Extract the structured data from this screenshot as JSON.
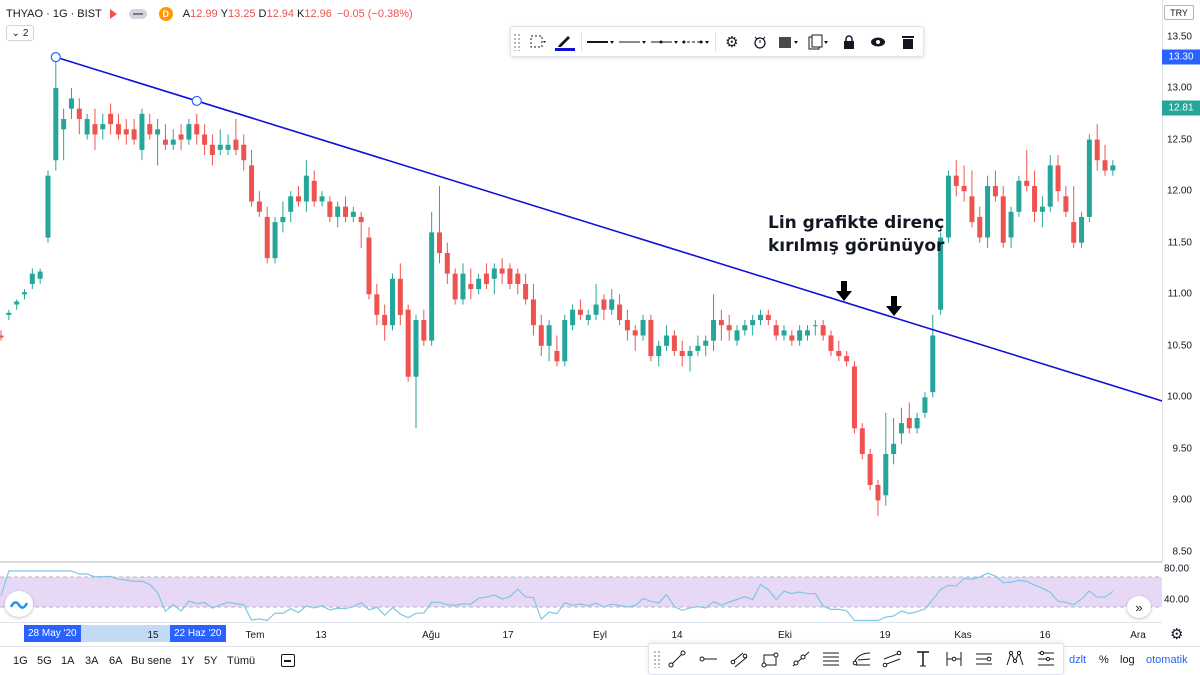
{
  "legend": {
    "symbol": "THYAO · 1G · BIST",
    "ohlc": [
      {
        "k": "A",
        "v": "12.99"
      },
      {
        "k": "Y",
        "v": "13.25"
      },
      {
        "k": "D",
        "v": "12.94"
      },
      {
        "k": "K",
        "v": "12.96"
      }
    ],
    "change": "−0.05 (−0.38%)",
    "d_badge": "D",
    "collapse_count": "2"
  },
  "price_axis": {
    "currency": "TRY",
    "labels": [
      "13.50",
      "13.00",
      "12.50",
      "12.00",
      "11.50",
      "11.00",
      "10.50",
      "10.00",
      "9.50",
      "9.00",
      "8.50"
    ],
    "tag_high": "13.30",
    "tag_last": "12.81",
    "rsi_labels": [
      "80.00",
      "40.00"
    ]
  },
  "annotation": {
    "line1": "Lin grafikte direnç",
    "line2": "kırılmış görünüyor"
  },
  "time_axis": {
    "tag_start": "28 May '20",
    "tag_end": "22 Haz '20",
    "labels": [
      "15",
      "Tem",
      "13",
      "Ağu",
      "17",
      "Eyl",
      "14",
      "Eki",
      "19",
      "Kas",
      "16",
      "Ara"
    ]
  },
  "bottom_bar": {
    "ranges": [
      "1G",
      "5G",
      "1A",
      "3A",
      "6A",
      "Bu sene",
      "1Y",
      "5Y",
      "Tümü"
    ],
    "right": {
      "adjust": "dzlt",
      "percent": "%",
      "log": "log",
      "auto": "otomatik"
    }
  },
  "colors": {
    "up": "#26a69a",
    "down": "#ef5350",
    "trendline": "#1010d8",
    "rsi_line": "#7ec7e3",
    "rsi_band": "#e7d9f6",
    "accent": "#2962ff"
  },
  "icons": {
    "drawing_toolbar": [
      "grip-icon",
      "select-area-icon",
      "pencil-icon",
      "line-style-solid-icon",
      "line-style-thin-icon",
      "line-style-dashdot-icon",
      "line-style-dots-icon",
      "gear-icon",
      "alert-icon",
      "fill-color-icon",
      "clone-icon",
      "lock-icon",
      "eye-icon",
      "trash-icon"
    ],
    "favorites": [
      "trend-line-icon",
      "horizontal-ray-icon",
      "parallel-channel-icon",
      "rectangle-icon",
      "ray-icon",
      "fib-retracement-icon",
      "pitchfork-icon",
      "parallel-lines-icon",
      "text-icon",
      "price-range-icon",
      "date-range-icon",
      "xabcd-pattern-icon",
      "gann-icon"
    ]
  },
  "chart_data": {
    "type": "candlestick",
    "symbol": "THYAO",
    "interval": "1G",
    "exchange": "BIST",
    "y_range": [
      8.5,
      13.5
    ],
    "x_labels": [
      "28 May '20",
      "15",
      "22 Haz '20",
      "Tem",
      "13",
      "Ağu",
      "17",
      "Eyl",
      "14",
      "Eki",
      "19",
      "Kas",
      "16",
      "Ara"
    ],
    "candles": [
      [
        10.6,
        10.65,
        10.55,
        10.58
      ],
      [
        10.8,
        10.85,
        10.75,
        10.82
      ],
      [
        10.9,
        10.95,
        10.85,
        10.93
      ],
      [
        11.0,
        11.05,
        10.95,
        11.02
      ],
      [
        11.1,
        11.25,
        11.05,
        11.2
      ],
      [
        11.15,
        11.25,
        11.1,
        11.22
      ],
      [
        11.55,
        12.2,
        11.5,
        12.15
      ],
      [
        12.3,
        13.3,
        12.2,
        13.0
      ],
      [
        12.6,
        12.8,
        12.3,
        12.7
      ],
      [
        12.8,
        13.0,
        12.7,
        12.9
      ],
      [
        12.8,
        12.9,
        12.55,
        12.7
      ],
      [
        12.55,
        12.75,
        12.5,
        12.7
      ],
      [
        12.65,
        12.8,
        12.4,
        12.55
      ],
      [
        12.6,
        12.75,
        12.5,
        12.65
      ],
      [
        12.75,
        12.85,
        12.55,
        12.65
      ],
      [
        12.65,
        12.75,
        12.5,
        12.55
      ],
      [
        12.6,
        12.7,
        12.45,
        12.55
      ],
      [
        12.6,
        12.7,
        12.45,
        12.5
      ],
      [
        12.4,
        12.8,
        12.3,
        12.75
      ],
      [
        12.65,
        12.75,
        12.5,
        12.55
      ],
      [
        12.55,
        12.7,
        12.25,
        12.6
      ],
      [
        12.5,
        12.65,
        12.4,
        12.45
      ],
      [
        12.45,
        12.6,
        12.4,
        12.5
      ],
      [
        12.55,
        12.65,
        12.4,
        12.5
      ],
      [
        12.5,
        12.7,
        12.45,
        12.65
      ],
      [
        12.65,
        12.75,
        12.45,
        12.55
      ],
      [
        12.55,
        12.65,
        12.35,
        12.45
      ],
      [
        12.45,
        12.55,
        12.25,
        12.35
      ],
      [
        12.4,
        12.6,
        12.35,
        12.45
      ],
      [
        12.4,
        12.55,
        12.35,
        12.45
      ],
      [
        12.5,
        12.7,
        12.35,
        12.4
      ],
      [
        12.45,
        12.55,
        12.2,
        12.3
      ],
      [
        12.25,
        12.4,
        11.85,
        11.9
      ],
      [
        11.9,
        12.0,
        11.75,
        11.8
      ],
      [
        11.75,
        11.85,
        11.3,
        11.35
      ],
      [
        11.35,
        11.75,
        11.3,
        11.7
      ],
      [
        11.7,
        11.9,
        11.6,
        11.75
      ],
      [
        11.8,
        12.0,
        11.7,
        11.95
      ],
      [
        11.95,
        12.05,
        11.85,
        11.9
      ],
      [
        11.9,
        12.3,
        11.8,
        12.15
      ],
      [
        12.1,
        12.2,
        11.85,
        11.9
      ],
      [
        11.9,
        12.0,
        11.85,
        11.95
      ],
      [
        11.9,
        11.95,
        11.7,
        11.75
      ],
      [
        11.75,
        11.9,
        11.65,
        11.85
      ],
      [
        11.85,
        11.95,
        11.7,
        11.75
      ],
      [
        11.75,
        11.85,
        11.7,
        11.8
      ],
      [
        11.75,
        11.8,
        11.45,
        11.7
      ],
      [
        11.55,
        11.65,
        10.95,
        11.0
      ],
      [
        11.0,
        11.1,
        10.7,
        10.8
      ],
      [
        10.8,
        10.9,
        10.55,
        10.7
      ],
      [
        10.7,
        11.2,
        10.65,
        11.15
      ],
      [
        11.15,
        11.3,
        10.7,
        10.8
      ],
      [
        10.85,
        10.9,
        10.15,
        10.2
      ],
      [
        10.2,
        10.8,
        9.7,
        10.75
      ],
      [
        10.75,
        10.85,
        10.5,
        10.55
      ],
      [
        10.55,
        11.8,
        10.5,
        11.6
      ],
      [
        11.6,
        12.05,
        11.3,
        11.4
      ],
      [
        11.4,
        11.5,
        11.1,
        11.2
      ],
      [
        11.2,
        11.25,
        10.9,
        10.95
      ],
      [
        10.95,
        11.3,
        10.9,
        11.2
      ],
      [
        11.1,
        11.25,
        10.95,
        11.05
      ],
      [
        11.05,
        11.2,
        11.0,
        11.15
      ],
      [
        11.2,
        11.3,
        11.05,
        11.1
      ],
      [
        11.15,
        11.3,
        11.0,
        11.25
      ],
      [
        11.25,
        11.35,
        11.1,
        11.2
      ],
      [
        11.25,
        11.3,
        11.05,
        11.1
      ],
      [
        11.2,
        11.25,
        11.0,
        11.1
      ],
      [
        11.1,
        11.2,
        10.9,
        10.95
      ],
      [
        10.95,
        11.1,
        10.6,
        10.7
      ],
      [
        10.7,
        10.8,
        10.4,
        10.5
      ],
      [
        10.5,
        10.75,
        10.35,
        10.7
      ],
      [
        10.45,
        10.6,
        10.3,
        10.35
      ],
      [
        10.35,
        10.8,
        10.3,
        10.75
      ],
      [
        10.7,
        10.9,
        10.65,
        10.85
      ],
      [
        10.85,
        10.95,
        10.75,
        10.8
      ],
      [
        10.75,
        10.85,
        10.7,
        10.8
      ],
      [
        10.8,
        11.1,
        10.75,
        10.9
      ],
      [
        10.95,
        11.0,
        10.75,
        10.85
      ],
      [
        10.85,
        11.05,
        10.8,
        10.95
      ],
      [
        10.9,
        11.0,
        10.7,
        10.75
      ],
      [
        10.75,
        10.85,
        10.55,
        10.65
      ],
      [
        10.65,
        10.7,
        10.45,
        10.6
      ],
      [
        10.6,
        10.8,
        10.55,
        10.75
      ],
      [
        10.75,
        10.8,
        10.35,
        10.4
      ],
      [
        10.4,
        10.55,
        10.3,
        10.5
      ],
      [
        10.5,
        10.7,
        10.45,
        10.6
      ],
      [
        10.6,
        10.65,
        10.4,
        10.45
      ],
      [
        10.45,
        10.55,
        10.3,
        10.4
      ],
      [
        10.4,
        10.5,
        10.25,
        10.45
      ],
      [
        10.45,
        10.6,
        10.4,
        10.5
      ],
      [
        10.5,
        10.6,
        10.4,
        10.55
      ],
      [
        10.55,
        11.0,
        10.45,
        10.75
      ],
      [
        10.75,
        10.85,
        10.55,
        10.7
      ],
      [
        10.7,
        10.8,
        10.55,
        10.65
      ],
      [
        10.55,
        10.7,
        10.5,
        10.65
      ],
      [
        10.65,
        10.75,
        10.6,
        10.7
      ],
      [
        10.7,
        10.8,
        10.6,
        10.75
      ],
      [
        10.75,
        10.85,
        10.7,
        10.8
      ],
      [
        10.8,
        10.85,
        10.7,
        10.75
      ],
      [
        10.7,
        10.75,
        10.55,
        10.6
      ],
      [
        10.6,
        10.7,
        10.55,
        10.65
      ],
      [
        10.6,
        10.65,
        10.5,
        10.55
      ],
      [
        10.55,
        10.7,
        10.5,
        10.65
      ],
      [
        10.6,
        10.7,
        10.55,
        10.65
      ],
      [
        10.7,
        10.75,
        10.6,
        10.7
      ],
      [
        10.7,
        10.75,
        10.55,
        10.6
      ],
      [
        10.6,
        10.65,
        10.4,
        10.45
      ],
      [
        10.45,
        10.55,
        10.35,
        10.4
      ],
      [
        10.4,
        10.45,
        10.3,
        10.35
      ],
      [
        10.3,
        10.35,
        9.65,
        9.7
      ],
      [
        9.7,
        9.75,
        9.4,
        9.45
      ],
      [
        9.45,
        9.5,
        9.1,
        9.15
      ],
      [
        9.15,
        9.2,
        8.85,
        9.0
      ],
      [
        9.05,
        9.85,
        8.95,
        9.45
      ],
      [
        9.45,
        9.8,
        9.35,
        9.55
      ],
      [
        9.65,
        9.9,
        9.55,
        9.75
      ],
      [
        9.8,
        9.95,
        9.65,
        9.7
      ],
      [
        9.7,
        9.85,
        9.65,
        9.8
      ],
      [
        9.85,
        10.05,
        9.8,
        10.0
      ],
      [
        10.05,
        10.8,
        10.0,
        10.6
      ],
      [
        10.85,
        11.6,
        10.8,
        11.55
      ],
      [
        11.55,
        12.2,
        11.5,
        12.15
      ],
      [
        12.15,
        12.3,
        11.95,
        12.05
      ],
      [
        12.05,
        12.25,
        11.9,
        12.0
      ],
      [
        11.95,
        12.2,
        11.65,
        11.7
      ],
      [
        11.75,
        11.85,
        11.5,
        11.55
      ],
      [
        11.55,
        12.15,
        11.45,
        12.05
      ],
      [
        12.05,
        12.2,
        11.9,
        11.95
      ],
      [
        11.95,
        12.05,
        11.45,
        11.5
      ],
      [
        11.55,
        11.85,
        11.45,
        11.8
      ],
      [
        11.8,
        12.15,
        11.75,
        12.1
      ],
      [
        12.1,
        12.4,
        12.0,
        12.05
      ],
      [
        12.05,
        12.2,
        11.7,
        11.8
      ],
      [
        11.8,
        11.95,
        11.65,
        11.85
      ],
      [
        11.85,
        12.35,
        11.8,
        12.25
      ],
      [
        12.25,
        12.35,
        11.9,
        12.0
      ],
      [
        11.95,
        12.05,
        11.75,
        11.8
      ],
      [
        11.7,
        12.05,
        11.45,
        11.5
      ],
      [
        11.5,
        11.8,
        11.45,
        11.75
      ],
      [
        11.75,
        12.55,
        11.7,
        12.5
      ],
      [
        12.5,
        12.65,
        12.2,
        12.3
      ],
      [
        12.3,
        12.45,
        12.15,
        12.2
      ],
      [
        12.2,
        12.3,
        12.15,
        12.25
      ]
    ],
    "trendline": {
      "from": {
        "bar": 7,
        "price": 13.3
      },
      "to": {
        "bar": 168,
        "price": 9.5
      }
    },
    "rsi": {
      "upper": 80,
      "lower": 40
    }
  }
}
